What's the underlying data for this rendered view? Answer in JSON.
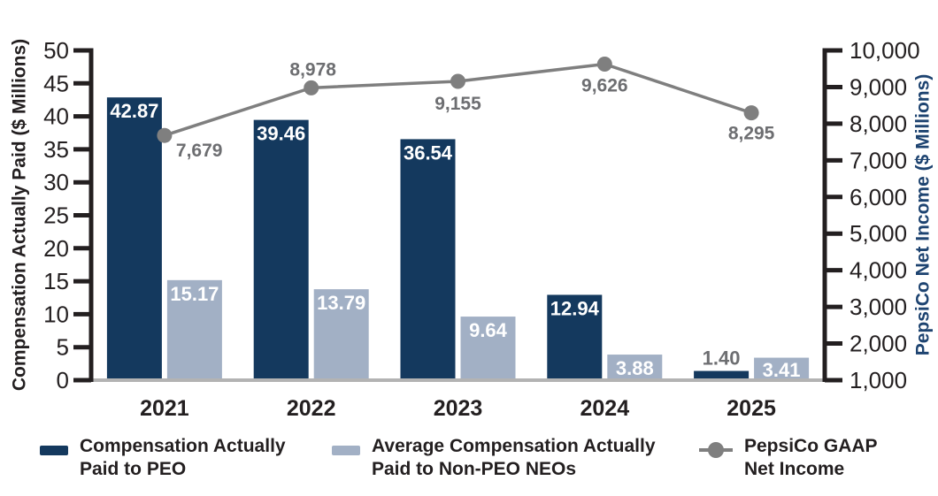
{
  "chart_data": {
    "type": "bar",
    "subtype": "grouped-bars-with-line-overlay",
    "categories": [
      "2021",
      "2022",
      "2023",
      "2024",
      "2025"
    ],
    "series": [
      {
        "name": "Compensation Actually Paid to PEO",
        "type": "bar",
        "axis": "left",
        "color": "#14395E",
        "values": [
          42.87,
          39.46,
          36.54,
          12.94,
          1.4
        ],
        "labels": [
          "42.87",
          "39.46",
          "36.54",
          "12.94",
          "1.40"
        ]
      },
      {
        "name": "Average Compensation Actually Paid to Non-PEO NEOs",
        "type": "bar",
        "axis": "left",
        "color": "#A2B0C5",
        "values": [
          15.17,
          13.79,
          9.64,
          3.88,
          3.41
        ],
        "labels": [
          "15.17",
          "13.79",
          "9.64",
          "3.88",
          "3.41"
        ]
      },
      {
        "name": "PepsiCo GAAP Net Income",
        "type": "line",
        "axis": "right",
        "color": "#7F7F7F",
        "values": [
          7679,
          8978,
          9155,
          9626,
          8295
        ],
        "labels": [
          "7,679",
          "8,978",
          "9,155",
          "9,626",
          "8,295"
        ]
      }
    ],
    "left_axis": {
      "title": "Compensation Actually Paid ($ Millions)",
      "min": 0,
      "max": 50,
      "step": 5,
      "tick_labels": [
        "0",
        "5",
        "10",
        "15",
        "20",
        "25",
        "30",
        "35",
        "40",
        "45",
        "50"
      ]
    },
    "right_axis": {
      "title": "PepsiCo Net Income ($ Millions)",
      "min": 1000,
      "max": 10000,
      "step": 1000,
      "tick_labels": [
        "1,000",
        "2,000",
        "3,000",
        "4,000",
        "5,000",
        "6,000",
        "7,000",
        "8,000",
        "9,000",
        "10,000"
      ]
    },
    "colors": {
      "axis_text": "#231F20",
      "axis_line": "#231F20",
      "right_axis_title": "#1D4370",
      "baseline": "#B3B3B3",
      "inside_bar_value_label": "#FFFFFF",
      "outside_bar_value_label": "#6D6E71",
      "line_point_label": "#6D6E71"
    },
    "grid": "off",
    "legend_position": "bottom"
  },
  "legend": {
    "items": [
      {
        "label": "Compensation Actually\nPaid to PEO",
        "swatch": "navy-rect"
      },
      {
        "label": "Average Compensation Actually\nPaid to Non-PEO NEOs",
        "swatch": "light-blue-rect"
      },
      {
        "label": "PepsiCo GAAP\nNet Income",
        "swatch": "gray-dot-line"
      }
    ]
  }
}
